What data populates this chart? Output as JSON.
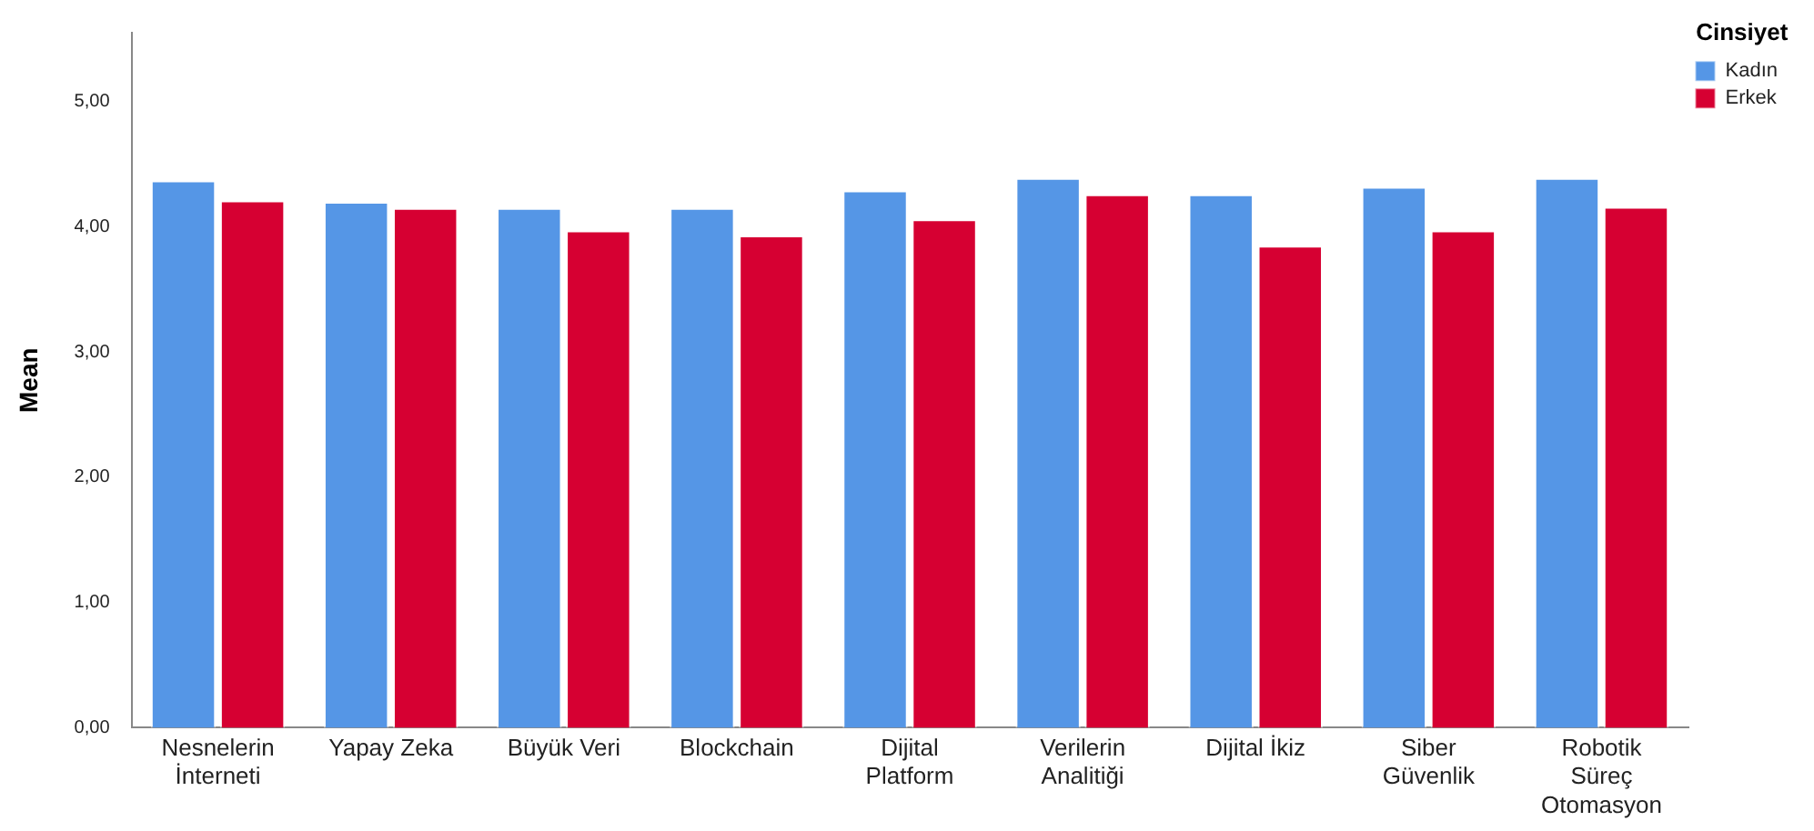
{
  "chart_data": {
    "type": "bar",
    "ylabel": "Mean",
    "legend_title": "Cinsiyet",
    "legend": "top right",
    "grid": false,
    "categories": [
      "Nesnelerin İnterneti",
      "Yapay Zeka",
      "Büyük Veri",
      "Blockchain",
      "Dijital Platform",
      "Verilerin Analitiği",
      "Dijital İkiz",
      "Siber Güvenlik",
      "Robotik Süreç Otomasyon"
    ],
    "series": [
      {
        "name": "Kadın",
        "color": "#5596e6",
        "values": [
          4.37,
          4.2,
          4.15,
          4.15,
          4.29,
          4.39,
          4.26,
          4.32,
          4.39
        ]
      },
      {
        "name": "Erkek",
        "color": "#d60032",
        "values": [
          4.21,
          4.15,
          3.97,
          3.93,
          4.06,
          4.26,
          3.85,
          3.97,
          4.16
        ]
      }
    ],
    "ylim": [
      0,
      5.55
    ],
    "yticks": [
      {
        "value": 0,
        "label": "0,00"
      },
      {
        "value": 1,
        "label": "1,00"
      },
      {
        "value": 2,
        "label": "2,00"
      },
      {
        "value": 3,
        "label": "3,00"
      },
      {
        "value": 4,
        "label": "4,00"
      },
      {
        "value": 5,
        "label": "5,00"
      }
    ]
  }
}
